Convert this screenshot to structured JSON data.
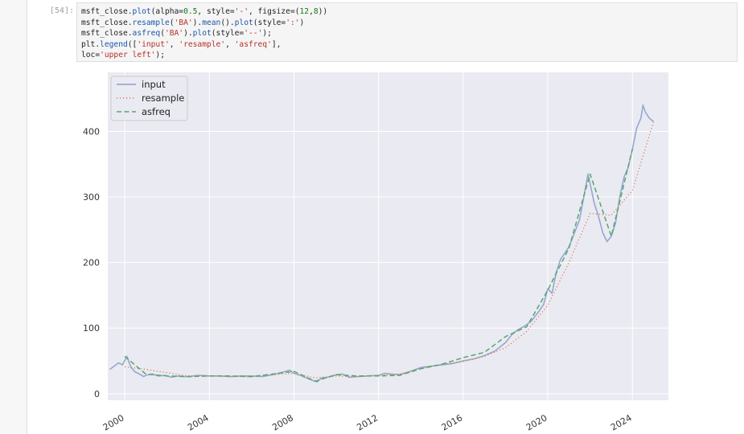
{
  "cell": {
    "prompt": "[54]:",
    "code_lines": [
      [
        {
          "t": "msft_close."
        },
        {
          "t": "plot",
          "c": "func"
        },
        {
          "t": "(alpha="
        },
        {
          "t": "0.5",
          "c": "num"
        },
        {
          "t": ", style="
        },
        {
          "t": "'-'",
          "c": "str"
        },
        {
          "t": ", figsize=("
        },
        {
          "t": "12",
          "c": "num"
        },
        {
          "t": ","
        },
        {
          "t": "8",
          "c": "num"
        },
        {
          "t": "))"
        }
      ],
      [
        {
          "t": "msft_close."
        },
        {
          "t": "resample",
          "c": "func"
        },
        {
          "t": "("
        },
        {
          "t": "'BA'",
          "c": "str"
        },
        {
          "t": ")."
        },
        {
          "t": "mean",
          "c": "func"
        },
        {
          "t": "()."
        },
        {
          "t": "plot",
          "c": "func"
        },
        {
          "t": "(style="
        },
        {
          "t": "':'",
          "c": "str"
        },
        {
          "t": ")"
        }
      ],
      [
        {
          "t": "msft_close."
        },
        {
          "t": "asfreq",
          "c": "func"
        },
        {
          "t": "("
        },
        {
          "t": "'BA'",
          "c": "str"
        },
        {
          "t": ")."
        },
        {
          "t": "plot",
          "c": "func"
        },
        {
          "t": "(style="
        },
        {
          "t": "'--'",
          "c": "str"
        },
        {
          "t": ");"
        }
      ],
      [
        {
          "t": "plt."
        },
        {
          "t": "legend",
          "c": "func"
        },
        {
          "t": "(["
        },
        {
          "t": "'input'",
          "c": "str"
        },
        {
          "t": ", "
        },
        {
          "t": "'resample'",
          "c": "str"
        },
        {
          "t": ", "
        },
        {
          "t": "'asfreq'",
          "c": "str"
        },
        {
          "t": "],"
        }
      ],
      [
        {
          "t": "loc="
        },
        {
          "t": "'upper left'",
          "c": "str"
        },
        {
          "t": ");"
        }
      ]
    ]
  },
  "chart_data": {
    "type": "line",
    "title": "",
    "xlabel": "",
    "ylabel": "",
    "xlim": [
      1999.2,
      2025.7
    ],
    "ylim": [
      -10,
      490
    ],
    "x_ticks": [
      2000,
      2004,
      2008,
      2012,
      2016,
      2020,
      2024
    ],
    "x_tick_labels": [
      "2000",
      "2004",
      "2008",
      "2012",
      "2016",
      "2020",
      "2024"
    ],
    "y_ticks": [
      0,
      100,
      200,
      300,
      400
    ],
    "y_tick_labels": [
      "0",
      "100",
      "200",
      "300",
      "400"
    ],
    "grid": true,
    "legend_position": "upper-left",
    "legend_style_samples": [
      "solid",
      "dotted",
      "dashed"
    ],
    "colors": {
      "input": "#8da0cb",
      "resample": "#e07b54",
      "asfreq": "#55a868",
      "axes_bg": "#eaeaf2",
      "grid": "#ffffff"
    },
    "series": [
      {
        "name": "input",
        "style": "solid",
        "x": [
          1999.3,
          1999.5,
          1999.7,
          1999.9,
          2000.0,
          2000.1,
          2000.3,
          2000.5,
          2000.7,
          2000.9,
          2001.0,
          2001.3,
          2001.6,
          2001.9,
          2002.2,
          2002.5,
          2002.8,
          2003.0,
          2003.5,
          2004.0,
          2004.5,
          2005.0,
          2005.5,
          2006.0,
          2006.5,
          2007.0,
          2007.5,
          2007.8,
          2008.0,
          2008.3,
          2008.6,
          2008.9,
          2009.1,
          2009.3,
          2009.6,
          2010.0,
          2010.3,
          2010.6,
          2011.0,
          2011.5,
          2012.0,
          2012.3,
          2012.6,
          2013.0,
          2013.5,
          2014.0,
          2014.5,
          2015.0,
          2015.5,
          2016.0,
          2016.5,
          2017.0,
          2017.5,
          2018.0,
          2018.3,
          2018.6,
          2018.9,
          2019.2,
          2019.5,
          2019.8,
          2020.0,
          2020.2,
          2020.4,
          2020.6,
          2020.8,
          2021.0,
          2021.2,
          2021.5,
          2021.7,
          2021.9,
          2022.0,
          2022.2,
          2022.4,
          2022.6,
          2022.8,
          2023.0,
          2023.2,
          2023.4,
          2023.6,
          2023.8,
          2024.0,
          2024.2,
          2024.4,
          2024.5,
          2024.6,
          2024.8,
          2025.0
        ],
        "y": [
          37,
          42,
          47,
          44,
          50,
          57,
          40,
          33,
          30,
          26,
          28,
          30,
          27,
          28,
          25,
          27,
          26,
          26,
          28,
          27,
          27,
          26,
          27,
          27,
          26,
          29,
          33,
          36,
          31,
          28,
          24,
          20,
          18,
          24,
          25,
          29,
          30,
          25,
          26,
          27,
          28,
          31,
          30,
          29,
          34,
          40,
          42,
          44,
          46,
          50,
          53,
          58,
          65,
          78,
          90,
          98,
          103,
          110,
          122,
          136,
          160,
          153,
          185,
          205,
          214,
          224,
          240,
          265,
          300,
          335,
          320,
          290,
          270,
          245,
          232,
          240,
          260,
          300,
          330,
          345,
          373,
          405,
          420,
          440,
          430,
          420,
          415
        ],
        "labels": []
      },
      {
        "name": "resample",
        "style": "dotted",
        "x": [
          2000.0,
          2001.0,
          2002.0,
          2003.0,
          2004.0,
          2005.0,
          2006.0,
          2007.0,
          2008.0,
          2009.0,
          2010.0,
          2011.0,
          2012.0,
          2013.0,
          2014.0,
          2015.0,
          2016.0,
          2017.0,
          2018.0,
          2019.0,
          2020.0,
          2021.0,
          2022.0,
          2023.0,
          2024.0,
          2025.0
        ],
        "y": [
          41,
          37,
          32,
          27,
          27,
          26,
          26,
          29,
          31,
          24,
          27,
          26,
          28,
          30,
          38,
          45,
          49,
          57,
          70,
          95,
          135,
          200,
          275,
          272,
          310,
          415
        ],
        "labels": []
      },
      {
        "name": "asfreq",
        "style": "dashed",
        "x": [
          2000.0,
          2001.0,
          2002.0,
          2003.0,
          2004.0,
          2005.0,
          2006.0,
          2007.0,
          2008.0,
          2009.0,
          2010.0,
          2011.0,
          2012.0,
          2013.0,
          2014.0,
          2015.0,
          2016.0,
          2017.0,
          2018.0,
          2019.0,
          2020.0,
          2021.0,
          2022.0,
          2023.0,
          2024.0
        ],
        "y": [
          57,
          30,
          27,
          26,
          27,
          27,
          26,
          30,
          34,
          19,
          29,
          27,
          27,
          28,
          38,
          45,
          55,
          63,
          87,
          102,
          158,
          222,
          335,
          240,
          373
        ],
        "labels": []
      }
    ]
  }
}
